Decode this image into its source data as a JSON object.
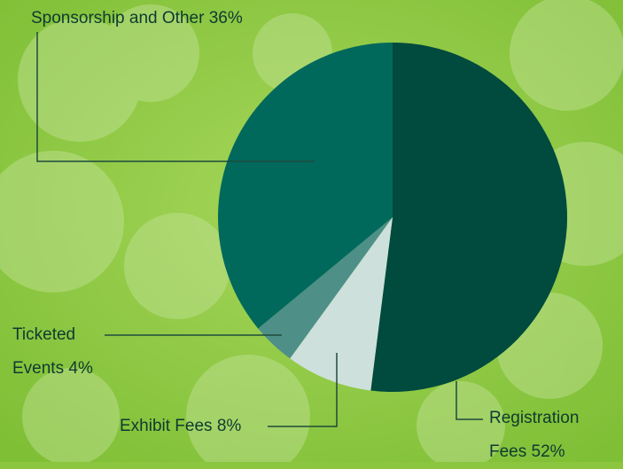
{
  "chart_data": {
    "type": "pie",
    "categories": [
      "Registration Fees",
      "Exhibit Fees",
      "Ticketed Events",
      "Sponsorship and Other"
    ],
    "values": [
      52,
      8,
      4,
      36
    ],
    "value_labels": [
      "52%",
      "8%",
      "4%",
      "36%"
    ],
    "colors": [
      "#004a3e",
      "#cde0dc",
      "#4e9088",
      "#00695c"
    ]
  }
}
